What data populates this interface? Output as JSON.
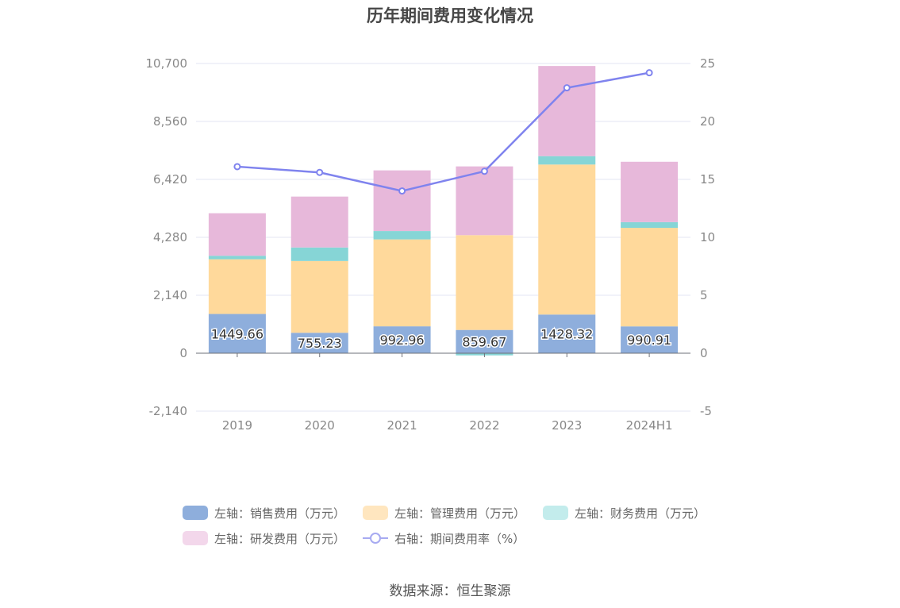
{
  "chart_data": {
    "type": "bar",
    "title": "历年期间费用变化情况",
    "categories": [
      "2019",
      "2020",
      "2021",
      "2022",
      "2023",
      "2024H1"
    ],
    "left_axis": {
      "ticks": [
        "10,700",
        "8,560",
        "6,420",
        "4,280",
        "2,140",
        "0",
        "-2,140"
      ],
      "ylim": [
        -2140,
        10700
      ]
    },
    "right_axis": {
      "ticks": [
        "25",
        "20",
        "15",
        "10",
        "5",
        "0",
        "-5"
      ],
      "ylim": [
        -5,
        25
      ]
    },
    "series": [
      {
        "name": "左轴：销售费用（万元）",
        "color": "#8eaedc",
        "values": [
          1449.66,
          755.23,
          992.96,
          859.67,
          1428.32,
          990.91
        ]
      },
      {
        "name": "左轴：管理费用（万元）",
        "color": "#ffd99b",
        "values": [
          2020,
          2650,
          3210,
          3500,
          5540,
          3640
        ]
      },
      {
        "name": "左轴：财务费用（万元）",
        "color": "#86d5d6",
        "values": [
          130,
          500,
          310,
          -80,
          310,
          210
        ]
      },
      {
        "name": "左轴：研发费用（万元）",
        "color": "#e7b8da",
        "values": [
          1570,
          1880,
          2240,
          2540,
          3330,
          2230
        ]
      }
    ],
    "line_series": {
      "name": "右轴：期间费用率（%）",
      "color": "#7f83ee",
      "values": [
        16.1,
        15.6,
        14.0,
        15.7,
        22.9,
        24.2
      ]
    },
    "data_labels": [
      "1449.66",
      "755.23",
      "992.96",
      "859.67",
      "1428.32",
      "990.91"
    ]
  },
  "legend_colors": {
    "sales": "#8eaedc",
    "admin": "#ffe6bf",
    "finance": "#c3ecec",
    "rd": "#f3d7eb"
  },
  "source": "数据来源：恒生聚源"
}
